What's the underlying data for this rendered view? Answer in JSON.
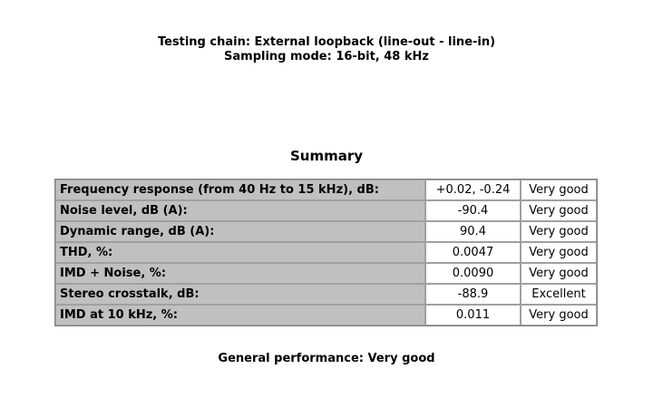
{
  "header": {
    "lines": [
      "Testing chain: External loopback (line-out - line-in)",
      "Sampling mode: 16-bit, 48 kHz"
    ]
  },
  "summary": {
    "title": "Summary",
    "table": {
      "rows": [
        [
          "Frequency response (from 40 Hz to 15 kHz), dB:",
          "+0.02, -0.24",
          "Very good"
        ],
        [
          "Noise level, dB (A):",
          "-90.4",
          "Very good"
        ],
        [
          "Dynamic range, dB (A):",
          "90.4",
          "Very good"
        ],
        [
          "THD, %:",
          "0.0047",
          "Very good"
        ],
        [
          "IMD + Noise, %:",
          "0.0090",
          "Very good"
        ],
        [
          "Stereo crosstalk, dB:",
          "-88.9",
          "Excellent"
        ],
        [
          "IMD at 10 kHz, %:",
          "0.011",
          "Very good"
        ]
      ]
    }
  },
  "footer": {
    "text": "General performance: Very good"
  }
}
